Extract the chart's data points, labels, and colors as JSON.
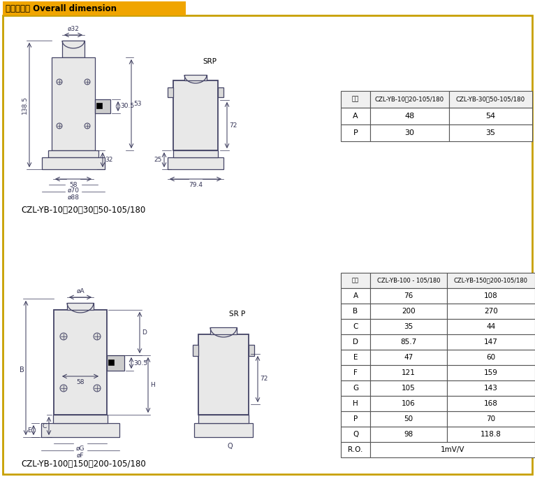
{
  "title": "外形尺寸： Overall dimension",
  "title_bg": "#f0a500",
  "outer_border_color": "#c8a000",
  "bg_color": "#ffffff",
  "dc": "#444466",
  "dim_c": "#333355",
  "table1": {
    "headers": [
      "型号",
      "CZL-YB-10、20-105/180",
      "CZL-YB-30、50-105/180"
    ],
    "rows": [
      [
        "A",
        "48",
        "54"
      ],
      [
        "P",
        "30",
        "35"
      ]
    ]
  },
  "table2": {
    "headers": [
      "型号",
      "CZL-YB-100 - 105/180",
      "CZL-YB-150、200-105/180"
    ],
    "rows": [
      [
        "A",
        "76",
        "108"
      ],
      [
        "B",
        "200",
        "270"
      ],
      [
        "C",
        "35",
        "44"
      ],
      [
        "D",
        "85.7",
        "147"
      ],
      [
        "E",
        "47",
        "60"
      ],
      [
        "F",
        "121",
        "159"
      ],
      [
        "G",
        "105",
        "143"
      ],
      [
        "H",
        "106",
        "168"
      ],
      [
        "P",
        "50",
        "70"
      ],
      [
        "Q",
        "98",
        "118.8"
      ],
      [
        "R.O.",
        "1mV/V",
        ""
      ]
    ]
  },
  "label1": "CZL-YB-10、20、30、50-105/180",
  "label2": "CZL-YB-100、150、200-105/180"
}
